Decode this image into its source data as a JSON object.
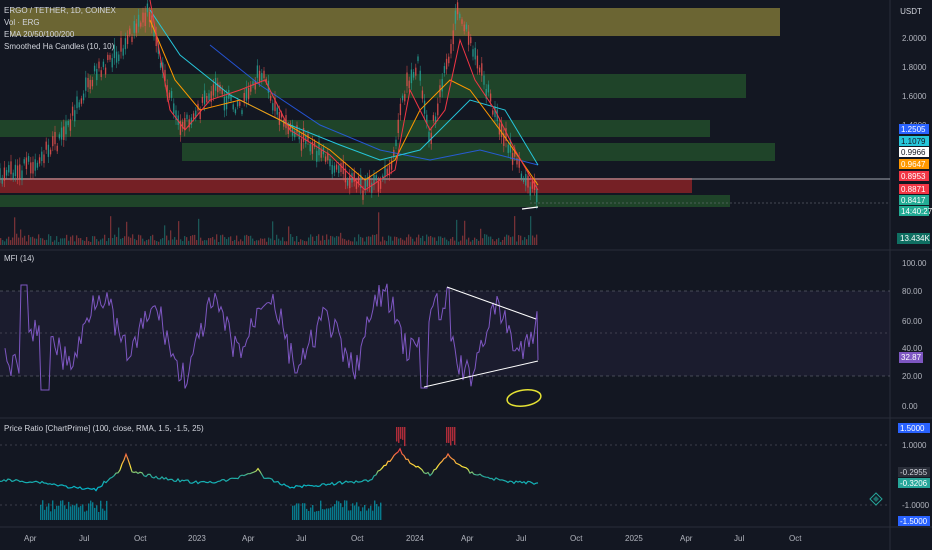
{
  "header": {
    "currency": "USDT"
  },
  "legend": {
    "symbol": "ERGO / TETHER, 1D, COINEX",
    "volume": "Vol · ERG",
    "ema": "EMA 20/50/100/200",
    "ha": "Smoothed Ha Candles (10, 10)",
    "mfi": "MFI (14)",
    "ratio": "Price Ratio [ChartPrime] (100, close, RMA, 1.5, -1.5, 25)"
  },
  "price_axis": {
    "ticks": [
      "2.0000",
      "1.8000",
      "1.6000",
      "1.4000"
    ]
  },
  "price_tags": [
    {
      "label": "1.2505",
      "bg": "#2962ff",
      "fg": "#ffffff"
    },
    {
      "label": "1.1079",
      "bg": "#26c6da",
      "fg": "#131722"
    },
    {
      "label": "0.9966",
      "bg": "#ffffff",
      "fg": "#131722"
    },
    {
      "label": "0.9647",
      "bg": "#ff9800",
      "fg": "#ffffff"
    },
    {
      "label": "0.8953",
      "bg": "#f23645",
      "fg": "#ffffff"
    },
    {
      "label": "0.8871",
      "bg": "#f23645",
      "fg": "#ffffff"
    },
    {
      "label": "0.8417",
      "bg": "#22ab94",
      "fg": "#ffffff"
    },
    {
      "label": "14:40:27",
      "bg": "#22ab94",
      "fg": "#ffffff"
    }
  ],
  "volume_tag": {
    "label": "13.434K",
    "bg": "#0f6f62",
    "fg": "#ffffff"
  },
  "mfi_axis": {
    "ticks": [
      "100.00",
      "80.00",
      "60.00",
      "40.00",
      "20.00",
      "0.00"
    ],
    "current": "32.87",
    "current_bg": "#7e57c2"
  },
  "ratio_axis": {
    "ticks": [
      "1.0000",
      "-1.0000"
    ]
  },
  "ratio_tags": [
    {
      "label": "1.5000",
      "bg": "#2962ff",
      "fg": "#ffffff"
    },
    {
      "label": "-0.2955",
      "bg": "#2a2e39",
      "fg": "#d1d4dc"
    },
    {
      "label": "-0.3206",
      "bg": "#26a69a",
      "fg": "#ffffff"
    },
    {
      "label": "-1.5000",
      "bg": "#2962ff",
      "fg": "#ffffff"
    }
  ],
  "time_axis": {
    "ticks": [
      "Apr",
      "Jul",
      "Oct",
      "2023",
      "Apr",
      "Jul",
      "Oct",
      "2024",
      "Apr",
      "Jul",
      "Oct",
      "2025",
      "Apr",
      "Jul",
      "Oct"
    ]
  },
  "zones_colors": {
    "supply": "#b5a642",
    "demand": "#2e7d32",
    "resistance": "#c62828"
  }
}
